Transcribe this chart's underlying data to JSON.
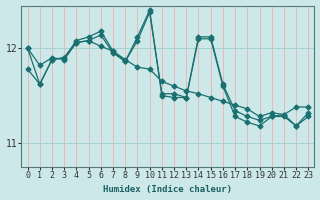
{
  "xlabel": "Humidex (Indice chaleur)",
  "ylabel": "",
  "xlim": [
    -0.5,
    23.5
  ],
  "ylim": [
    10.75,
    12.45
  ],
  "yticks": [
    11,
    12
  ],
  "xticks": [
    0,
    1,
    2,
    3,
    4,
    5,
    6,
    7,
    8,
    9,
    10,
    11,
    12,
    13,
    14,
    15,
    16,
    17,
    18,
    19,
    20,
    21,
    22,
    23
  ],
  "bg_color": "#cce8e8",
  "grid_color_v": "#e8b8b8",
  "grid_color_h": "#a8d0d0",
  "line_color": "#1a7070",
  "line1_y": [
    12.0,
    11.82,
    11.9,
    11.88,
    12.06,
    12.08,
    12.02,
    11.97,
    11.88,
    11.8,
    11.78,
    11.65,
    11.6,
    11.55,
    11.52,
    11.48,
    11.44,
    11.4,
    11.36,
    11.28,
    11.32,
    11.3,
    11.38,
    11.38
  ],
  "line2_y": [
    12.0,
    11.62,
    11.88,
    11.9,
    12.06,
    12.08,
    12.14,
    11.95,
    11.86,
    12.08,
    12.38,
    11.52,
    11.52,
    11.48,
    12.12,
    12.12,
    11.62,
    11.34,
    11.28,
    11.24,
    11.28,
    11.28,
    11.18,
    11.28
  ],
  "line3_y": [
    11.78,
    11.62,
    11.88,
    11.9,
    12.08,
    12.12,
    12.18,
    11.97,
    11.86,
    12.12,
    12.4,
    11.5,
    11.48,
    11.48,
    12.1,
    12.1,
    11.6,
    11.28,
    11.22,
    11.18,
    11.28,
    11.3,
    11.18,
    11.32
  ]
}
